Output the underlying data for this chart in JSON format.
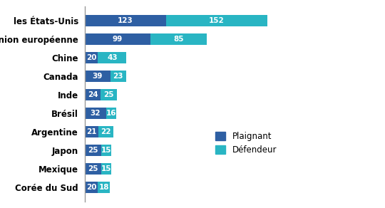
{
  "categories": [
    "les États-Unis",
    "Union européenne",
    "Chine",
    "Canada",
    "Inde",
    "Brésil",
    "Argentine",
    "Japon",
    "Mexique",
    "Corée du Sud"
  ],
  "plaignant": [
    123,
    99,
    20,
    39,
    24,
    32,
    21,
    25,
    25,
    20
  ],
  "defendeur": [
    152,
    85,
    43,
    23,
    25,
    16,
    22,
    15,
    15,
    18
  ],
  "color_plaignant": "#2E5FA3",
  "color_defendeur": "#29B5C3",
  "legend_plaignant": "Plaignant",
  "legend_defendeur": "Défendeur",
  "background_color": "#ffffff",
  "bar_height": 0.6,
  "fontsize_labels": 8.5,
  "fontsize_values": 7.5,
  "xlim": [
    0,
    290
  ]
}
